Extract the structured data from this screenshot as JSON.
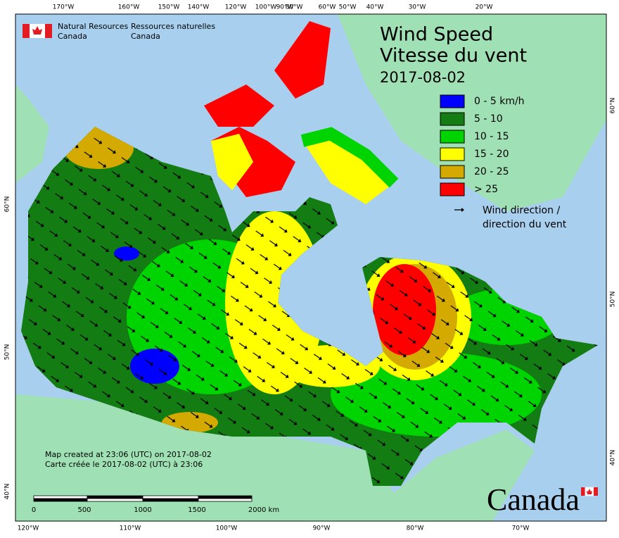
{
  "header": {
    "agency_en": [
      "Natural Resources",
      "Canada"
    ],
    "agency_fr": [
      "Ressources naturelles",
      "Canada"
    ]
  },
  "title": "Wind Speed",
  "title_fr": "Vitesse du vent",
  "date": "2017-08-02",
  "legend": [
    {
      "label": "0 - 5 km/h",
      "color": "#0000ff"
    },
    {
      "label": "5 - 10",
      "color": "#137c13"
    },
    {
      "label": "10 - 15",
      "color": "#00d400"
    },
    {
      "label": "15 - 20",
      "color": "#ffff00"
    },
    {
      "label": "20 - 25",
      "color": "#d4aa00"
    },
    {
      "label": "> 25",
      "color": "#ff0000"
    }
  ],
  "legend_arrow": [
    "Wind direction /",
    "direction du vent"
  ],
  "top_longitudes": [
    "170°W",
    "160°W",
    "150°W",
    "140°W",
    "120°W",
    "100°W",
    "90°W",
    "80°W",
    "60°W",
    "50°W",
    "40°W",
    "30°W",
    "20°W"
  ],
  "bottom_longitudes": [
    "120°W",
    "110°W",
    "100°W",
    "90°W",
    "80°W",
    "70°W"
  ],
  "left_latitudes": [
    "60°N",
    "50°N",
    "40°N"
  ],
  "right_latitudes": [
    "60°N",
    "50°N",
    "40°N"
  ],
  "footer": [
    "Map created at 23:06 (UTC) on 2017-08-02",
    "Carte créée le 2017-08-02 (UTC) à 23:06"
  ],
  "scale": [
    "0",
    "500",
    "1000",
    "1500",
    "2000 km"
  ],
  "wordmark": "Canada"
}
